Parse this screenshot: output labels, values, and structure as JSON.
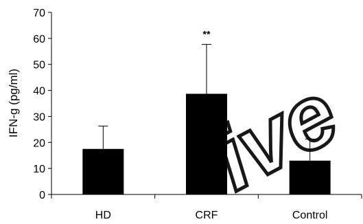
{
  "chart_data": {
    "type": "bar",
    "categories": [
      "HD",
      "CRF",
      "Control"
    ],
    "values": [
      17.5,
      38.7,
      13.0
    ],
    "errors": [
      8.8,
      19.0,
      8.3
    ],
    "annotations": [
      "",
      "**",
      ""
    ],
    "xlabel": "",
    "ylabel": "IFN-g (pg/ml)",
    "ylim": [
      0,
      70
    ],
    "yticks": [
      0,
      10,
      20,
      30,
      40,
      50,
      60,
      70
    ],
    "grid": false,
    "bar_color": "#000000",
    "watermark": "ive"
  }
}
